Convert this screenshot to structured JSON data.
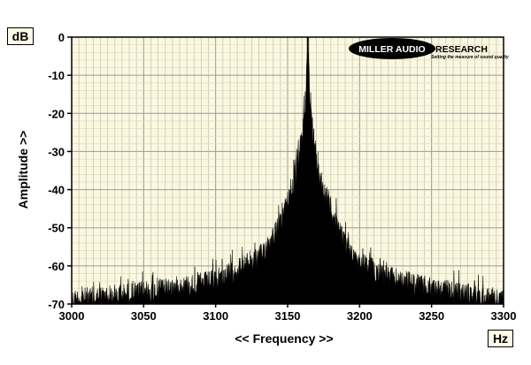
{
  "chart_data": {
    "type": "area",
    "title": "",
    "xlabel": "<< Frequency >>",
    "ylabel": "Amplitude >>",
    "x_unit": "Hz",
    "y_unit": "dB",
    "xlim": [
      3000,
      3300
    ],
    "ylim": [
      -70,
      0
    ],
    "xticks": [
      "3000",
      "3050",
      "3100",
      "3150",
      "3200",
      "3250",
      "3300"
    ],
    "yticks": [
      "0",
      "-10",
      "-20",
      "-30",
      "-40",
      "-50",
      "-60",
      "-70"
    ],
    "grid": true,
    "peak": {
      "frequency_hz": 3164,
      "amplitude_db": 0
    },
    "spectrum_envelope": {
      "x": [
        3000,
        3050,
        3100,
        3130,
        3145,
        3155,
        3160,
        3163,
        3164,
        3165,
        3168,
        3173,
        3180,
        3195,
        3220,
        3250,
        3300
      ],
      "y": [
        -66,
        -64,
        -61,
        -55,
        -46,
        -34,
        -23,
        -9,
        0,
        -9,
        -23,
        -34,
        -42,
        -55,
        -60,
        -63,
        -66
      ]
    },
    "background_color": "#fbf8e0",
    "trace_color": "#000000"
  },
  "logo": {
    "main_left": "MILLER AUDIO",
    "main_right": "RESEARCH",
    "tagline": "Setting the measure of sound quality"
  },
  "units": {
    "y": "dB",
    "x": "Hz"
  }
}
